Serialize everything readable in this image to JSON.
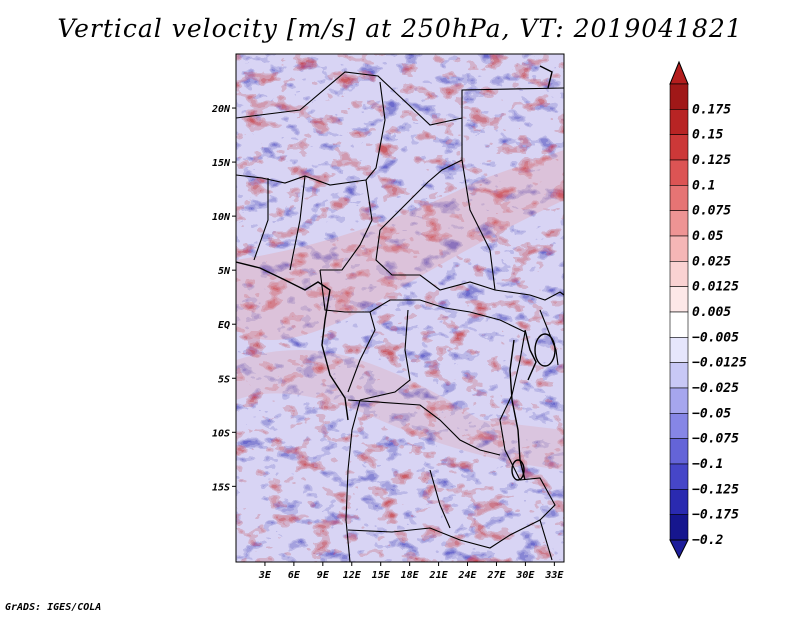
{
  "title": "Vertical velocity [m/s] at 250hPa, VT: 2019041821",
  "footer": "GrADS: IGES/COLA",
  "map": {
    "variable": "Vertical velocity",
    "units": "m/s",
    "level": "250hPa",
    "valid_time": "2019041821",
    "lon_range": [
      0,
      34
    ],
    "lat_range": [
      -22,
      25
    ],
    "lat_ticks": [
      {
        "value": 20,
        "label": "20N"
      },
      {
        "value": 15,
        "label": "15N"
      },
      {
        "value": 10,
        "label": "10N"
      },
      {
        "value": 5,
        "label": "5N"
      },
      {
        "value": 0,
        "label": "EQ"
      },
      {
        "value": -5,
        "label": "5S"
      },
      {
        "value": -10,
        "label": "10S"
      },
      {
        "value": -15,
        "label": "15S"
      }
    ],
    "lon_ticks": [
      {
        "value": 3,
        "label": "3E"
      },
      {
        "value": 6,
        "label": "6E"
      },
      {
        "value": 9,
        "label": "9E"
      },
      {
        "value": 12,
        "label": "12E"
      },
      {
        "value": 15,
        "label": "15E"
      },
      {
        "value": 18,
        "label": "18E"
      },
      {
        "value": 21,
        "label": "21E"
      },
      {
        "value": 24,
        "label": "24E"
      },
      {
        "value": 27,
        "label": "27E"
      },
      {
        "value": 30,
        "label": "30E"
      },
      {
        "value": 33,
        "label": "33E"
      }
    ]
  },
  "colorbar": {
    "levels": [
      {
        "label": "0.175",
        "color": "#a01818"
      },
      {
        "label": "0.15",
        "color": "#b82424"
      },
      {
        "label": "0.125",
        "color": "#cc3838"
      },
      {
        "label": "0.1",
        "color": "#dc5454"
      },
      {
        "label": "0.075",
        "color": "#e67474"
      },
      {
        "label": "0.05",
        "color": "#ee9494"
      },
      {
        "label": "0.025",
        "color": "#f5b6b6"
      },
      {
        "label": "0.0125",
        "color": "#fad2d2"
      },
      {
        "label": "0.005",
        "color": "#fde8e8"
      },
      {
        "label": "−0.005",
        "color": "#ffffff"
      },
      {
        "label": "−0.0125",
        "color": "#e6e6fc"
      },
      {
        "label": "−0.025",
        "color": "#c8c8f6"
      },
      {
        "label": "−0.05",
        "color": "#a6a6ee"
      },
      {
        "label": "−0.075",
        "color": "#8686e6"
      },
      {
        "label": "−0.1",
        "color": "#6464d8"
      },
      {
        "label": "−0.125",
        "color": "#4646c8"
      },
      {
        "label": "−0.175",
        "color": "#2a2ab0"
      },
      {
        "label": "−0.2",
        "color": "#16168e"
      }
    ],
    "overflow_high_color": "#b41e1e",
    "overflow_low_color": "#1e1e9a"
  }
}
